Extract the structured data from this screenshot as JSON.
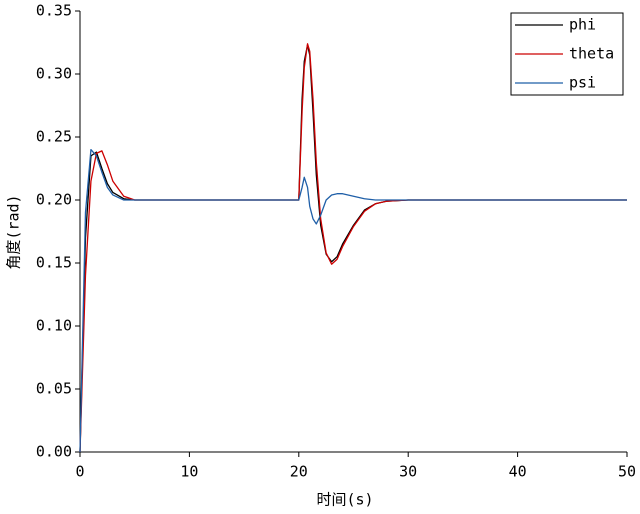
{
  "chart_data": {
    "type": "line",
    "xlabel": "时间(s)",
    "ylabel": "角度(rad)",
    "x": [
      0,
      0.5,
      1,
      1.5,
      2,
      2.5,
      3,
      4,
      5,
      6,
      8,
      10,
      15,
      19.9,
      20,
      20.3,
      20.5,
      20.8,
      21,
      21.3,
      21.6,
      22,
      22.5,
      23,
      23.5,
      24,
      25,
      26,
      27,
      28,
      30,
      35,
      40,
      45,
      50
    ],
    "series": [
      {
        "name": "phi",
        "color": "#000000",
        "values": [
          0,
          0.17,
          0.235,
          0.238,
          0.225,
          0.213,
          0.206,
          0.201,
          0.2,
          0.2,
          0.2,
          0.2,
          0.2,
          0.2,
          0.2,
          0.28,
          0.31,
          0.323,
          0.315,
          0.27,
          0.22,
          0.18,
          0.157,
          0.151,
          0.155,
          0.165,
          0.18,
          0.192,
          0.197,
          0.199,
          0.2,
          0.2,
          0.2,
          0.2,
          0.2
        ]
      },
      {
        "name": "theta",
        "color": "#cc0000",
        "values": [
          0,
          0.14,
          0.215,
          0.237,
          0.239,
          0.228,
          0.215,
          0.203,
          0.2,
          0.2,
          0.2,
          0.2,
          0.2,
          0.2,
          0.2,
          0.27,
          0.305,
          0.324,
          0.318,
          0.28,
          0.23,
          0.185,
          0.158,
          0.149,
          0.153,
          0.163,
          0.179,
          0.191,
          0.197,
          0.199,
          0.2,
          0.2,
          0.2,
          0.2,
          0.2
        ]
      },
      {
        "name": "psi",
        "color": "#1f5fa8",
        "values": [
          0,
          0.19,
          0.24,
          0.235,
          0.222,
          0.21,
          0.204,
          0.2,
          0.2,
          0.2,
          0.2,
          0.2,
          0.2,
          0.2,
          0.2,
          0.21,
          0.218,
          0.21,
          0.195,
          0.185,
          0.181,
          0.188,
          0.2,
          0.204,
          0.205,
          0.205,
          0.203,
          0.201,
          0.2,
          0.2,
          0.2,
          0.2,
          0.2,
          0.2,
          0.2
        ]
      }
    ],
    "xlim": [
      0,
      50
    ],
    "xticks": [
      0,
      10,
      20,
      30,
      40,
      50
    ],
    "ylim": [
      0,
      0.35
    ],
    "yticks": [
      {
        "value": 0,
        "label": "0.00"
      },
      {
        "value": 0.05,
        "label": "0.05"
      },
      {
        "value": 0.1,
        "label": "0.10"
      },
      {
        "value": 0.15,
        "label": "0.15"
      },
      {
        "value": 0.2,
        "label": "0.20"
      },
      {
        "value": 0.25,
        "label": "0.25"
      },
      {
        "value": 0.3,
        "label": "0.30"
      },
      {
        "value": 0.35,
        "label": "0.35"
      }
    ],
    "grid": false,
    "legend": "upper right"
  }
}
